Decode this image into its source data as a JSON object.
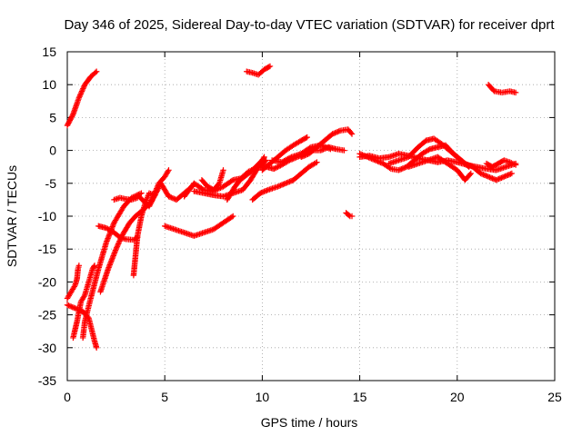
{
  "chart_data": {
    "type": "scatter",
    "title": "Day 346 of 2025, Sidereal Day-to-day VTEC variation (SDTVAR) for receiver dprt",
    "xlabel": "GPS time / hours",
    "ylabel": "SDTVAR / TECUs",
    "xlim": [
      0,
      25
    ],
    "ylim": [
      -35,
      15
    ],
    "xticks": [
      0,
      5,
      10,
      15,
      20,
      25
    ],
    "yticks": [
      -35,
      -30,
      -25,
      -20,
      -15,
      -10,
      -5,
      0,
      5,
      10,
      15
    ],
    "grid": true,
    "legend": "none",
    "marker": "+",
    "series": [
      {
        "name": "SDTVAR",
        "color": "#ff0000",
        "tracks": [
          [
            [
              0.0,
              3.8
            ],
            [
              0.3,
              5.5
            ],
            [
              0.6,
              8.0
            ],
            [
              0.9,
              10.0
            ],
            [
              1.2,
              11.2
            ],
            [
              1.5,
              12.0
            ]
          ],
          [
            [
              0.0,
              -22.5
            ],
            [
              0.2,
              -21.5
            ],
            [
              0.4,
              -20.5
            ],
            [
              0.5,
              -19.5
            ],
            [
              0.55,
              -18.0
            ],
            [
              0.6,
              -17.5
            ]
          ],
          [
            [
              0.0,
              -23.5
            ],
            [
              0.4,
              -24.0
            ],
            [
              0.8,
              -24.5
            ],
            [
              1.1,
              -25.5
            ],
            [
              1.4,
              -29.0
            ],
            [
              1.5,
              -30.0
            ]
          ],
          [
            [
              0.3,
              -28.5
            ],
            [
              0.5,
              -26.0
            ],
            [
              0.7,
              -23.0
            ],
            [
              0.9,
              -22.0
            ],
            [
              1.1,
              -20.0
            ],
            [
              1.3,
              -18.0
            ],
            [
              1.4,
              -17.5
            ]
          ],
          [
            [
              0.8,
              -28.5
            ],
            [
              0.9,
              -26.0
            ],
            [
              1.2,
              -22.5
            ],
            [
              1.6,
              -18.0
            ],
            [
              2.0,
              -14.0
            ],
            [
              2.4,
              -11.0
            ],
            [
              2.9,
              -8.5
            ],
            [
              3.3,
              -7.2
            ],
            [
              3.8,
              -6.5
            ]
          ],
          [
            [
              1.7,
              -21.5
            ],
            [
              2.1,
              -18.0
            ],
            [
              2.5,
              -15.0
            ],
            [
              2.8,
              -13.0
            ],
            [
              3.2,
              -11.0
            ],
            [
              3.5,
              -10.0
            ],
            [
              3.9,
              -9.0
            ],
            [
              4.3,
              -7.8
            ],
            [
              4.7,
              -5.0
            ],
            [
              5.0,
              -4.0
            ],
            [
              5.2,
              -3.0
            ]
          ],
          [
            [
              1.6,
              -11.5
            ],
            [
              2.0,
              -11.8
            ],
            [
              2.4,
              -12.5
            ],
            [
              2.7,
              -13.2
            ],
            [
              3.0,
              -13.5
            ],
            [
              3.4,
              -13.6
            ],
            [
              3.6,
              -13.2
            ]
          ],
          [
            [
              3.4,
              -19.0
            ],
            [
              3.5,
              -16.0
            ],
            [
              3.6,
              -13.0
            ],
            [
              3.8,
              -10.0
            ],
            [
              4.0,
              -8.0
            ],
            [
              4.2,
              -6.5
            ],
            [
              4.5,
              -6.8
            ]
          ],
          [
            [
              2.4,
              -7.5
            ],
            [
              2.7,
              -7.2
            ],
            [
              3.0,
              -7.4
            ],
            [
              3.3,
              -7.5
            ],
            [
              3.6,
              -7.2
            ]
          ],
          [
            [
              3.6,
              -6.8
            ],
            [
              4.2,
              -8.5
            ],
            [
              4.8,
              -5.0
            ],
            [
              5.2,
              -7.0
            ],
            [
              5.6,
              -7.5
            ],
            [
              6.0,
              -6.5
            ],
            [
              6.4,
              -5.5
            ]
          ],
          [
            [
              5.0,
              -11.5
            ],
            [
              5.5,
              -12.0
            ],
            [
              6.0,
              -12.5
            ],
            [
              6.5,
              -13.0
            ],
            [
              7.0,
              -12.5
            ],
            [
              7.5,
              -12.0
            ],
            [
              8.0,
              -11.0
            ],
            [
              8.5,
              -10.0
            ]
          ],
          [
            [
              6.0,
              -7.0
            ],
            [
              6.5,
              -5.0
            ],
            [
              7.0,
              -6.0
            ],
            [
              7.5,
              -6.2
            ],
            [
              8.0,
              -5.5
            ],
            [
              8.5,
              -4.5
            ],
            [
              9.0,
              -4.2
            ],
            [
              9.5,
              -3.0
            ],
            [
              10.0,
              -1.5
            ]
          ],
          [
            [
              6.5,
              -6.2
            ],
            [
              7.0,
              -6.5
            ],
            [
              7.5,
              -6.8
            ],
            [
              8.0,
              -7.0
            ],
            [
              8.5,
              -6.5
            ],
            [
              9.0,
              -6.0
            ],
            [
              9.4,
              -4.5
            ],
            [
              9.8,
              -2.5
            ],
            [
              10.1,
              -1.0
            ]
          ],
          [
            [
              6.9,
              -4.5
            ],
            [
              7.2,
              -5.5
            ],
            [
              7.5,
              -6.0
            ],
            [
              7.8,
              -5.0
            ],
            [
              8.0,
              -3.0
            ]
          ],
          [
            [
              8.2,
              -7.5
            ],
            [
              8.6,
              -5.5
            ],
            [
              9.0,
              -4.0
            ],
            [
              9.3,
              -3.2
            ],
            [
              9.6,
              -2.8
            ],
            [
              9.9,
              -2.5
            ],
            [
              10.2,
              -1.5
            ]
          ],
          [
            [
              9.5,
              -7.5
            ],
            [
              9.9,
              -6.5
            ],
            [
              10.3,
              -6.0
            ],
            [
              10.8,
              -5.5
            ],
            [
              11.2,
              -5.0
            ],
            [
              11.6,
              -4.5
            ],
            [
              12.0,
              -3.5
            ],
            [
              12.4,
              -2.5
            ],
            [
              12.8,
              -1.8
            ]
          ],
          [
            [
              10.0,
              -3.0
            ],
            [
              10.4,
              -2.0
            ],
            [
              10.8,
              -1.0
            ],
            [
              11.2,
              0.0
            ],
            [
              11.6,
              0.8
            ],
            [
              12.0,
              1.5
            ],
            [
              12.3,
              2.0
            ]
          ],
          [
            [
              10.2,
              -2.5
            ],
            [
              10.6,
              -2.8
            ],
            [
              11.0,
              -2.2
            ],
            [
              11.4,
              -1.5
            ],
            [
              11.8,
              -1.0
            ],
            [
              12.2,
              -0.5
            ],
            [
              12.6,
              0.0
            ],
            [
              13.0,
              0.0
            ],
            [
              13.4,
              0.5
            ],
            [
              13.8,
              0.2
            ],
            [
              14.2,
              0.0
            ]
          ],
          [
            [
              12.0,
              -1.0
            ],
            [
              12.4,
              -0.5
            ],
            [
              12.8,
              0.5
            ],
            [
              13.2,
              1.5
            ],
            [
              13.6,
              2.5
            ],
            [
              14.0,
              3.0
            ],
            [
              14.4,
              3.2
            ],
            [
              14.6,
              2.5
            ]
          ],
          [
            [
              10.5,
              -1.5
            ],
            [
              11.0,
              -1.8
            ],
            [
              11.5,
              -1.0
            ],
            [
              12.0,
              -0.5
            ],
            [
              12.5,
              0.5
            ],
            [
              13.0,
              0.8
            ],
            [
              13.5,
              0.2
            ]
          ],
          [
            [
              9.2,
              12.0
            ],
            [
              9.5,
              11.8
            ],
            [
              9.8,
              11.5
            ],
            [
              10.1,
              12.3
            ],
            [
              10.4,
              12.8
            ]
          ],
          [
            [
              14.3,
              -9.5
            ],
            [
              14.5,
              -10.0
            ],
            [
              14.6,
              -10.0
            ]
          ],
          [
            [
              15.0,
              -0.5
            ],
            [
              15.4,
              -1.0
            ],
            [
              15.8,
              -1.5
            ],
            [
              16.2,
              -2.0
            ],
            [
              16.6,
              -2.8
            ],
            [
              17.0,
              -3.0
            ],
            [
              17.4,
              -2.5
            ],
            [
              17.8,
              -1.5
            ],
            [
              18.2,
              -0.5
            ],
            [
              18.6,
              0.2
            ],
            [
              19.0,
              0.5
            ],
            [
              19.4,
              0.8
            ],
            [
              19.8,
              -0.5
            ],
            [
              20.2,
              -1.5
            ],
            [
              20.6,
              -2.5
            ]
          ],
          [
            [
              15.0,
              -1.0
            ],
            [
              15.5,
              -0.8
            ],
            [
              16.0,
              -1.2
            ],
            [
              16.5,
              -1.0
            ],
            [
              17.0,
              -0.5
            ],
            [
              17.5,
              -0.8
            ],
            [
              18.0,
              -1.2
            ],
            [
              18.5,
              -1.5
            ],
            [
              19.0,
              -1.8
            ],
            [
              19.5,
              -1.5
            ],
            [
              20.0,
              -1.8
            ],
            [
              20.5,
              -2.2
            ],
            [
              21.0,
              -2.5
            ],
            [
              21.5,
              -2.8
            ],
            [
              22.0,
              -3.0
            ],
            [
              22.5,
              -2.5
            ],
            [
              23.0,
              -2.0
            ]
          ],
          [
            [
              16.5,
              -2.0
            ],
            [
              17.0,
              -1.5
            ],
            [
              17.5,
              -1.0
            ],
            [
              18.0,
              0.5
            ],
            [
              18.4,
              1.5
            ],
            [
              18.8,
              1.8
            ],
            [
              19.2,
              1.0
            ],
            [
              19.6,
              0.0
            ],
            [
              20.0,
              -1.0
            ],
            [
              20.4,
              -2.0
            ],
            [
              20.8,
              -2.5
            ],
            [
              21.2,
              -3.5
            ],
            [
              21.6,
              -4.0
            ],
            [
              22.0,
              -4.5
            ],
            [
              22.4,
              -4.0
            ],
            [
              22.8,
              -3.5
            ]
          ],
          [
            [
              17.5,
              -2.5
            ],
            [
              18.0,
              -2.0
            ],
            [
              18.5,
              -1.5
            ],
            [
              19.0,
              -1.0
            ],
            [
              19.5,
              -2.0
            ],
            [
              20.0,
              -3.0
            ],
            [
              20.4,
              -4.5
            ],
            [
              20.7,
              -3.5
            ]
          ],
          [
            [
              21.5,
              -2.0
            ],
            [
              21.8,
              -2.5
            ],
            [
              22.1,
              -2.0
            ],
            [
              22.4,
              -1.5
            ],
            [
              22.7,
              -1.8
            ],
            [
              23.0,
              -2.2
            ]
          ],
          [
            [
              21.6,
              10.0
            ],
            [
              21.9,
              9.0
            ],
            [
              22.3,
              8.8
            ],
            [
              22.7,
              9.0
            ],
            [
              23.0,
              8.8
            ]
          ]
        ]
      }
    ]
  }
}
